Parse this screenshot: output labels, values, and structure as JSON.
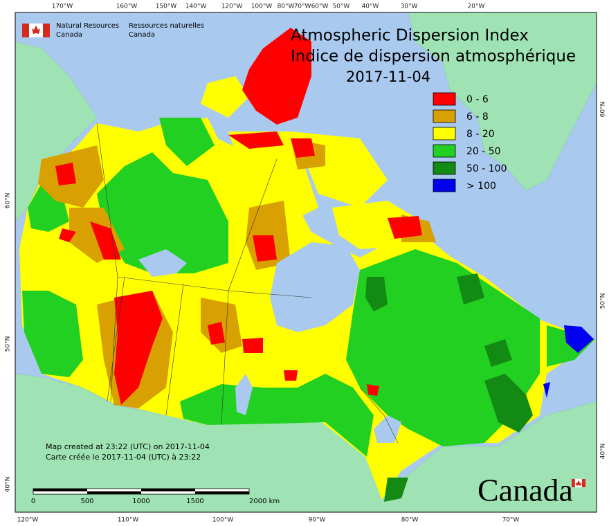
{
  "agency": {
    "en_line1": "Natural Resources",
    "en_line2": "Canada",
    "fr_line1": "Ressources naturelles",
    "fr_line2": "Canada"
  },
  "title": {
    "en": "Atmospheric Dispersion Index",
    "fr": "Indice de dispersion atmosphérique",
    "date": "2017-11-04"
  },
  "legend": [
    {
      "label": "0 - 6",
      "color": "#ff0000"
    },
    {
      "label": "6 - 8",
      "color": "#d8a000"
    },
    {
      "label": "8 - 20",
      "color": "#ffff00"
    },
    {
      "label": "20 - 50",
      "color": "#22d022"
    },
    {
      "label": "50 - 100",
      "color": "#138a13"
    },
    {
      "label": "> 100",
      "color": "#0000ee"
    }
  ],
  "graticule": {
    "top": [
      "170°W",
      "160°W",
      "150°W",
      "140°W",
      "120°W",
      "100°W",
      "80°W",
      "70°W",
      "60°W",
      "50°W",
      "40°W",
      "30°W",
      "20°W"
    ],
    "bottom": [
      "120°W",
      "110°W",
      "100°W",
      "90°W",
      "80°W",
      "70°W"
    ],
    "left": [
      "60°N",
      "50°N",
      "40°N"
    ],
    "right": [
      "60°N",
      "50°N",
      "40°N"
    ]
  },
  "notes": [
    "Map created at 23:22 (UTC) on 2017-11-04",
    "Carte créée le 2017-11-04 (UTC) à 23:22"
  ],
  "scale_bar": {
    "labels": [
      "0",
      "500",
      "1000",
      "1500",
      "2000 km"
    ]
  },
  "wordmark": "Canada"
}
